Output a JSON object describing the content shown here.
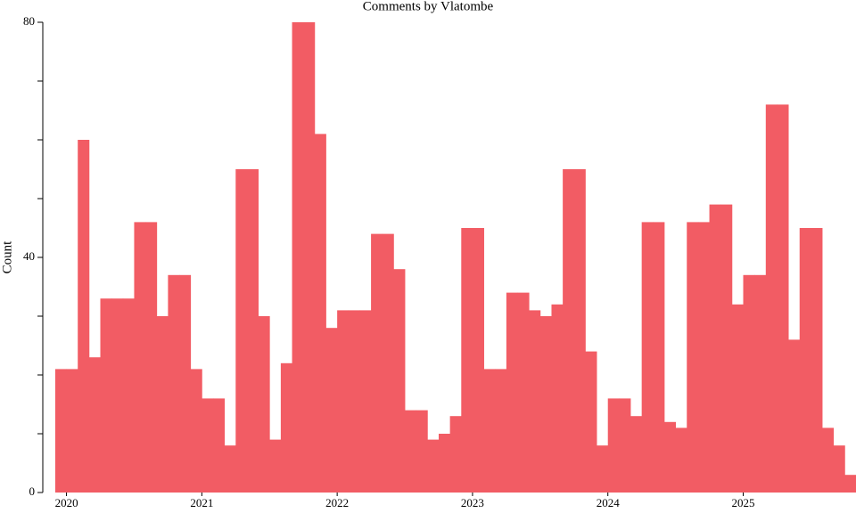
{
  "chart_data": {
    "type": "histogram",
    "title": "Comments by Vlatombe",
    "ylabel": "Count",
    "bins": [
      -1,
      0,
      1,
      2,
      3,
      4,
      5,
      6,
      7,
      8,
      9,
      10,
      11,
      12,
      13,
      14,
      15,
      16,
      17,
      18,
      19,
      20,
      21,
      22,
      23,
      24,
      25,
      26,
      27,
      28,
      29,
      30,
      31,
      32,
      33,
      34,
      35,
      36,
      37,
      38,
      39,
      40,
      41,
      42,
      43,
      44,
      45,
      46,
      47,
      48,
      49,
      50,
      51,
      52,
      53,
      54,
      55,
      56,
      57,
      58,
      59,
      60,
      61,
      62,
      63,
      64,
      65,
      66,
      67,
      68,
      69,
      70
    ],
    "values": [
      21,
      21,
      60,
      23,
      33,
      33,
      33,
      46,
      46,
      30,
      37,
      37,
      21,
      16,
      16,
      8,
      55,
      55,
      30,
      9,
      22,
      80,
      80,
      61,
      28,
      31,
      31,
      31,
      44,
      44,
      38,
      14,
      14,
      9,
      10,
      13,
      45,
      45,
      21,
      21,
      34,
      34,
      31,
      30,
      32,
      55,
      55,
      24,
      8,
      16,
      16,
      13,
      46,
      46,
      12,
      11,
      46,
      46,
      49,
      49,
      32,
      37,
      37,
      66,
      66,
      26,
      45,
      45,
      11,
      8,
      3
    ],
    "color": "#f25c64",
    "xlim": [
      -2.1,
      70
    ],
    "xticks": [
      {
        "value": 0,
        "label": "2020"
      },
      {
        "value": 12,
        "label": "2021"
      },
      {
        "value": 24,
        "label": "2022"
      },
      {
        "value": 36,
        "label": "2023"
      },
      {
        "value": 48,
        "label": "2024"
      },
      {
        "value": 60,
        "label": "2025"
      }
    ],
    "ylim": [
      0,
      80
    ],
    "yticks": [
      0,
      40,
      80
    ],
    "yminor_ticks": [
      10,
      20,
      30,
      50,
      60,
      70
    ]
  }
}
